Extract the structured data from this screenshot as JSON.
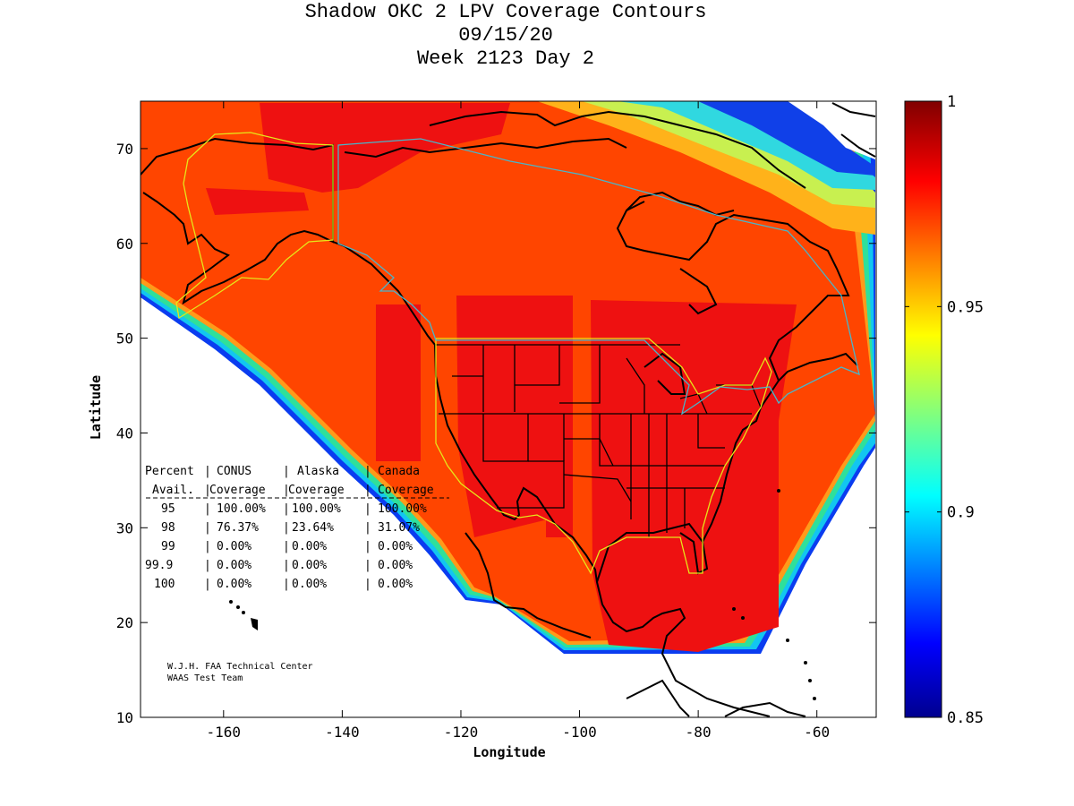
{
  "title": {
    "line1": "Shadow OKC 2 LPV Coverage Contours",
    "line2": "09/15/20",
    "line3": "Week 2123 Day 2"
  },
  "axes": {
    "xlabel": "Longitude",
    "ylabel": "Latitude",
    "x_ticks": [
      "-160",
      "-140",
      "-120",
      "-100",
      "-80",
      "-60"
    ],
    "y_ticks": [
      "10",
      "20",
      "30",
      "40",
      "50",
      "60",
      "70"
    ],
    "xlim": [
      -174,
      -50
    ],
    "ylim": [
      10,
      75
    ]
  },
  "colorbar": {
    "ticks": [
      "0.85",
      "0.9",
      "0.95",
      "1"
    ],
    "range": [
      0.85,
      1.0
    ],
    "colormap": "jet"
  },
  "coverage_table": {
    "header1": [
      "Percent",
      "CONUS",
      "Alaska",
      "Canada"
    ],
    "header2": [
      "Avail.",
      "Coverage",
      "Coverage",
      "Coverage"
    ],
    "rows": [
      [
        "95",
        "100.00%",
        "100.00%",
        "100.00%"
      ],
      [
        "98",
        "76.37%",
        "23.64%",
        "31.07%"
      ],
      [
        "99",
        "0.00%",
        "0.00%",
        "0.00%"
      ],
      [
        "99.9",
        "0.00%",
        "0.00%",
        "0.00%"
      ],
      [
        "100",
        "0.00%",
        "0.00%",
        "0.00%"
      ]
    ]
  },
  "credits": {
    "line1": "W.J.H. FAA Technical Center",
    "line2": "WAAS Test Team"
  },
  "colors": {
    "coverage_base": "#ff4500",
    "coverage_high": "#ef0f0f",
    "service_area_conus": "#e6e619",
    "service_area_canada": "#49b5c9",
    "coastline": "#000000"
  }
}
